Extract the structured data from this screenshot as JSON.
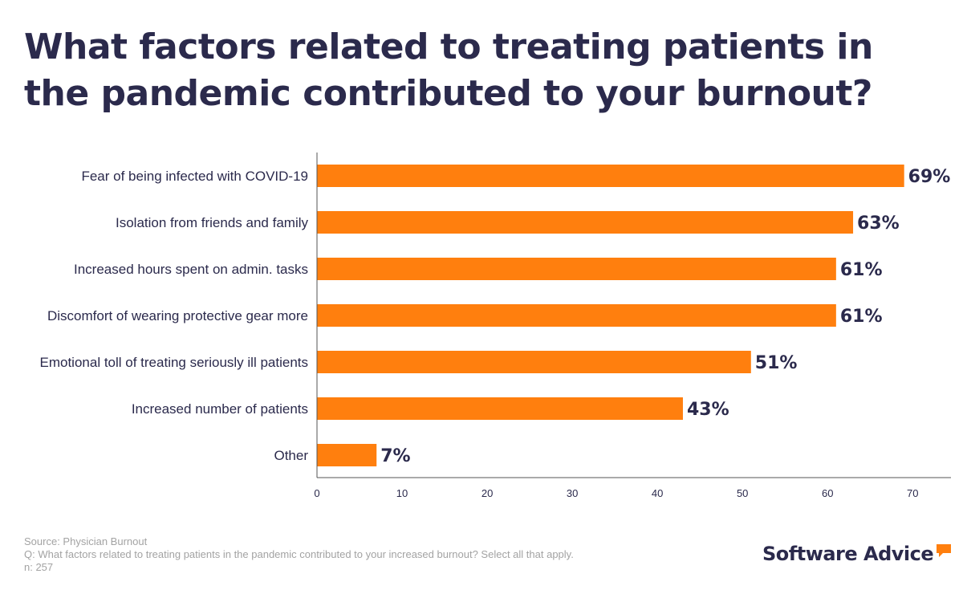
{
  "title": "What factors related to treating patients in the pandemic contributed to your burnout?",
  "chart_data": {
    "type": "bar",
    "orientation": "horizontal",
    "categories": [
      "Fear of being infected with COVID-19",
      "Isolation from friends and family",
      "Increased hours spent on admin. tasks",
      "Discomfort of wearing protective gear more",
      "Emotional toll of treating seriously ill patients",
      "Increased number of patients",
      "Other"
    ],
    "values": [
      69,
      63,
      61,
      61,
      51,
      43,
      7
    ],
    "value_labels": [
      "69%",
      "63%",
      "61%",
      "61%",
      "51%",
      "43%",
      "7%"
    ],
    "xticks": [
      0,
      10,
      20,
      30,
      40,
      50,
      60,
      70
    ],
    "xlim": [
      0,
      74.5
    ],
    "bar_color": "#ff7f0e",
    "grid": false
  },
  "footer": {
    "source": "Source: Physician Burnout",
    "question": "Q: What factors related to treating patients in the pandemic contributed to your increased burnout? Select all that apply.",
    "n": "n: 257"
  },
  "brand": {
    "name": "Software Advice",
    "text_color": "#2b2a4c",
    "bubble_color": "#ff7f0e",
    "icon": "speech-bubble-icon"
  }
}
